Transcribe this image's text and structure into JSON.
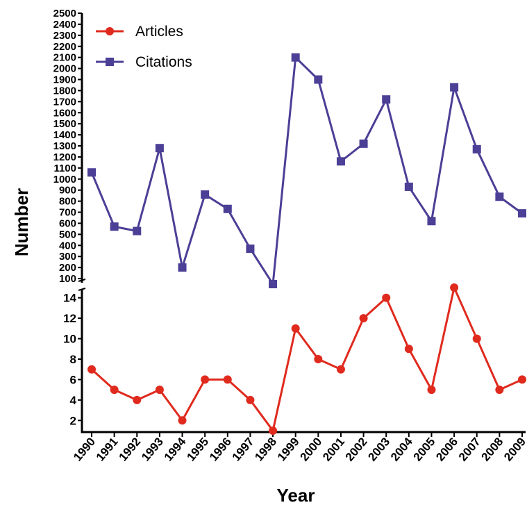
{
  "chart_data": {
    "type": "line",
    "xlabel": "Year",
    "ylabel": "Number",
    "categories": [
      "1990",
      "1991",
      "1992",
      "1993",
      "1994",
      "1995",
      "1996",
      "1997",
      "1998",
      "1999",
      "2000",
      "2001",
      "2002",
      "2003",
      "2004",
      "2005",
      "2006",
      "2007",
      "2008",
      "2009"
    ],
    "axis_break": true,
    "upper_axis": {
      "series_name": "Citations",
      "ylim": [
        50,
        2500
      ],
      "ticks": [
        100,
        200,
        300,
        400,
        500,
        600,
        700,
        800,
        900,
        1000,
        1100,
        1200,
        1300,
        1400,
        1500,
        1600,
        1700,
        1800,
        1900,
        2000,
        2100,
        2200,
        2300,
        2400,
        2500
      ]
    },
    "lower_axis": {
      "series_name": "Articles",
      "ylim": [
        1,
        15
      ],
      "ticks": [
        2,
        4,
        6,
        8,
        10,
        12,
        14
      ]
    },
    "series": [
      {
        "name": "Articles",
        "color": "#e02a1e",
        "marker": "circle",
        "values": [
          7,
          5,
          4,
          5,
          2,
          6,
          6,
          4,
          1,
          11,
          8,
          7,
          12,
          14,
          9,
          5,
          15,
          10,
          5,
          6
        ]
      },
      {
        "name": "Citations",
        "color": "#4b3f96",
        "marker": "square",
        "values": [
          1060,
          570,
          530,
          1280,
          200,
          860,
          730,
          370,
          50,
          2100,
          1900,
          1160,
          1320,
          1720,
          930,
          620,
          1830,
          1270,
          840,
          690
        ]
      }
    ],
    "legend": {
      "position": "top-left",
      "entries": [
        "Articles",
        "Citations"
      ]
    },
    "grid": false
  }
}
